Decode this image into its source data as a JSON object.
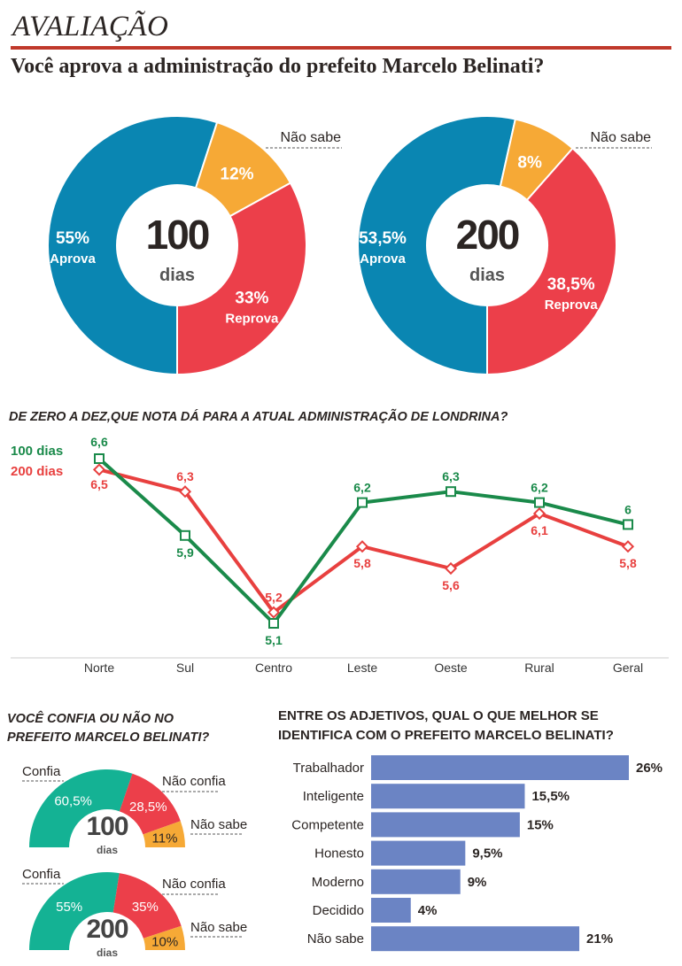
{
  "header": {
    "title": "AVALIAÇÃO",
    "subtitle": "Você aprova a administração do prefeito Marcelo Belinati?"
  },
  "colors": {
    "aprova": "#0a86b2",
    "reprova": "#ec3f4a",
    "nao_sabe": "#f6a936",
    "line_100": "#1a8a4a",
    "line_200": "#e8403f",
    "confia": "#14b294",
    "bars": "#6b84c4",
    "rule": "#c0392b"
  },
  "chart_data": [
    {
      "type": "pie",
      "center_number": "100",
      "center_unit": "dias",
      "slices": [
        {
          "label": "Aprova",
          "value": 55,
          "value_label": "55%"
        },
        {
          "label": "Não sabe",
          "value": 12,
          "value_label": "12%"
        },
        {
          "label": "Reprova",
          "value": 33,
          "value_label": "33%"
        }
      ]
    },
    {
      "type": "pie",
      "center_number": "200",
      "center_unit": "dias",
      "slices": [
        {
          "label": "Aprova",
          "value": 53.5,
          "value_label": "53,5%"
        },
        {
          "label": "Não sabe",
          "value": 8,
          "value_label": "8%"
        },
        {
          "label": "Reprova",
          "value": 38.5,
          "value_label": "38,5%"
        }
      ]
    },
    {
      "type": "line",
      "title": "DE ZERO A DEZ,QUE NOTA DÁ PARA A ATUAL ADMINISTRAÇÃO DE LONDRINA?",
      "categories": [
        "Norte",
        "Sul",
        "Centro",
        "Leste",
        "Oeste",
        "Rural",
        "Geral"
      ],
      "series": [
        {
          "name": "100 dias",
          "values": [
            6.6,
            5.9,
            5.1,
            6.2,
            6.3,
            6.2,
            6.0
          ],
          "labels": [
            "6,6",
            "5,9",
            "5,1",
            "6,2",
            "6,3",
            "6,2",
            "6"
          ]
        },
        {
          "name": "200 dias",
          "values": [
            6.5,
            6.3,
            5.2,
            5.8,
            5.6,
            6.1,
            5.8
          ],
          "labels": [
            "6,5",
            "6,3",
            "5,2",
            "5,8",
            "5,6",
            "6,1",
            "5,8"
          ]
        }
      ],
      "legend": "top-left",
      "grid": false
    },
    {
      "type": "pie",
      "subtype": "semicircle",
      "title": "VOCÊ CONFIA OU NÃO NO PREFEITO MARCELO BELINATI?",
      "gauges": [
        {
          "center_number": "100",
          "center_unit": "dias",
          "slices": [
            {
              "label": "Confia",
              "value": 60.5,
              "value_label": "60,5%"
            },
            {
              "label": "Não confia",
              "value": 28.5,
              "value_label": "28,5%"
            },
            {
              "label": "Não sabe",
              "value": 11,
              "value_label": "11%"
            }
          ]
        },
        {
          "center_number": "200",
          "center_unit": "dias",
          "slices": [
            {
              "label": "Confia",
              "value": 55,
              "value_label": "55%"
            },
            {
              "label": "Não confia",
              "value": 35,
              "value_label": "35%"
            },
            {
              "label": "Não sabe",
              "value": 10,
              "value_label": "10%"
            }
          ]
        }
      ]
    },
    {
      "type": "bar",
      "orientation": "horizontal",
      "title": "ENTRE OS ADJETIVOS, QUAL O QUE MELHOR SE IDENTIFICA COM O PREFEITO MARCELO BELINATI?",
      "categories": [
        "Trabalhador",
        "Inteligente",
        "Competente",
        "Honesto",
        "Moderno",
        "Decidido",
        "Não sabe"
      ],
      "values": [
        26,
        15.5,
        15,
        9.5,
        9,
        4,
        21
      ],
      "value_labels": [
        "26%",
        "15,5%",
        "15%",
        "9,5%",
        "9%",
        "4%",
        "21%"
      ]
    }
  ],
  "sections": {
    "line_title": "DE ZERO A DEZ,QUE NOTA DÁ PARA A ATUAL ADMINISTRAÇÃO DE LONDRINA?",
    "trust_title_1": "VOCÊ CONFIA OU NÃO NO",
    "trust_title_2": "PREFEITO MARCELO BELINATI?",
    "adj_title_1": "ENTRE OS ADJETIVOS, QUAL O QUE MELHOR SE",
    "adj_title_2": "IDENTIFICA COM O PREFEITO MARCELO BELINATI?"
  }
}
